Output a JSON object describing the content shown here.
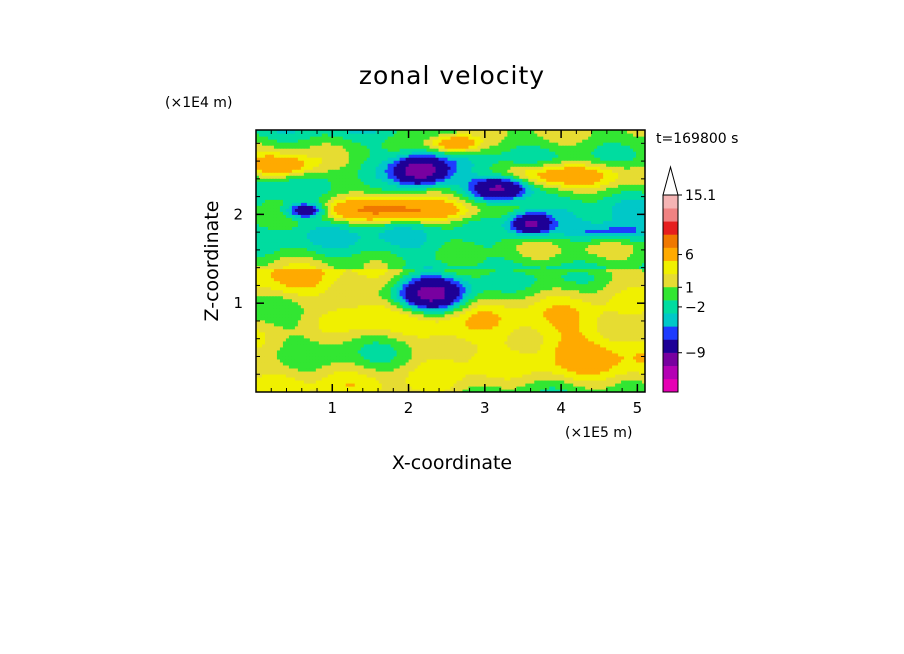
{
  "chart_data": {
    "type": "heatmap",
    "title": "zonal velocity",
    "xlabel": "X-coordinate",
    "ylabel": "Z-coordinate",
    "x_unit": "(×1E5 m)",
    "y_unit": "(×1E4 m)",
    "time_label": "t=169800 s",
    "xlim": [
      0,
      5.1
    ],
    "ylim": [
      0,
      2.95
    ],
    "x_ticks": [
      1,
      2,
      3,
      4,
      5
    ],
    "y_ticks": [
      1,
      2
    ],
    "colorbar": {
      "tick_labels": [
        "15.1",
        "6",
        "1",
        "−2",
        "−9"
      ],
      "tick_values": [
        15.1,
        6,
        1,
        -2,
        -9
      ],
      "levels": [
        {
          "value": -15,
          "color": "#e600b4"
        },
        {
          "value": -12,
          "color": "#b400b4"
        },
        {
          "value": -9,
          "color": "#7800a0"
        },
        {
          "value": -6,
          "color": "#1e0096"
        },
        {
          "value": -3,
          "color": "#1e3cff"
        },
        {
          "value": -2,
          "color": "#00c8c8"
        },
        {
          "value": -1,
          "color": "#00dca0"
        },
        {
          "value": 0,
          "color": "#32e632"
        },
        {
          "value": 1,
          "color": "#e6dc32"
        },
        {
          "value": 2,
          "color": "#f0f000"
        },
        {
          "value": 3,
          "color": "#ffaa00"
        },
        {
          "value": 6,
          "color": "#f07800"
        },
        {
          "value": 9,
          "color": "#e61e1e"
        },
        {
          "value": 12,
          "color": "#f08282"
        },
        {
          "value": 15.1,
          "color": "#f5b4b4"
        }
      ]
    },
    "features": [
      {
        "x": 2.15,
        "z": 2.5,
        "rx": 0.32,
        "rz": 0.16,
        "v": -8
      },
      {
        "x": 3.2,
        "z": 2.3,
        "rx": 0.38,
        "rz": 0.14,
        "v": -8
      },
      {
        "x": 2.3,
        "z": 1.1,
        "rx": 0.45,
        "rz": 0.2,
        "v": -8
      },
      {
        "x": 1.75,
        "z": 2.05,
        "rx": 0.9,
        "rz": 0.12,
        "v": 6
      },
      {
        "x": 3.9,
        "z": 2.45,
        "rx": 0.9,
        "rz": 0.14,
        "v": 5
      },
      {
        "x": 0.35,
        "z": 2.55,
        "rx": 0.45,
        "rz": 0.12,
        "v": 4
      },
      {
        "x": 3.6,
        "z": 1.9,
        "rx": 0.25,
        "rz": 0.12,
        "v": -7
      },
      {
        "x": 0.65,
        "z": 2.05,
        "rx": 0.25,
        "rz": 0.08,
        "v": -6
      },
      {
        "x": 4.6,
        "z": 1.8,
        "rx": 0.55,
        "rz": 0.1,
        "v": -3
      },
      {
        "x": 4.3,
        "z": 0.65,
        "rx": 0.85,
        "rz": 0.45,
        "v": 2
      },
      {
        "x": 1.4,
        "z": 0.9,
        "rx": 0.45,
        "rz": 0.25,
        "v": 1.5
      },
      {
        "x": 2.6,
        "z": 0.45,
        "rx": 0.55,
        "rz": 0.4,
        "v": 1.8
      },
      {
        "x": 0.4,
        "z": 1.2,
        "rx": 0.5,
        "rz": 0.25,
        "v": 1.5
      },
      {
        "x": 2.6,
        "z": 2.8,
        "rx": 0.3,
        "rz": 0.1,
        "v": 5
      },
      {
        "x": 3.9,
        "z": 1.3,
        "rx": 0.55,
        "rz": 0.1,
        "v": -0.5
      }
    ]
  }
}
